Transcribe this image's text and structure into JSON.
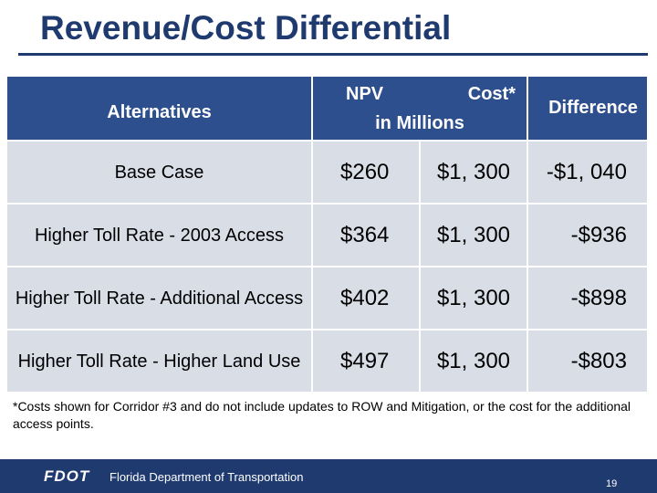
{
  "slide": {
    "title": "Revenue/Cost Differential"
  },
  "table": {
    "headers": {
      "alternatives": "Alternatives",
      "npv": "NPV",
      "cost": "Cost*",
      "units": "in Millions",
      "difference": "Difference"
    },
    "rows": [
      {
        "alternative": "Base Case",
        "npv": "$260",
        "cost": "$1, 300",
        "difference": "-$1, 040"
      },
      {
        "alternative": "Higher Toll Rate - 2003 Access",
        "npv": "$364",
        "cost": "$1, 300",
        "difference": "-$936"
      },
      {
        "alternative": "Higher Toll Rate - Additional Access",
        "npv": "$402",
        "cost": "$1, 300",
        "difference": "-$898"
      },
      {
        "alternative": "Higher Toll Rate - Higher Land Use",
        "npv": "$497",
        "cost": "$1, 300",
        "difference": "-$803"
      }
    ]
  },
  "footnote": "*Costs shown for Corridor #3 and do not include updates to ROW and Mitigation, or the cost for the additional access points.",
  "footer": {
    "logo_text": "FDOT",
    "organization": "Florida Department of Transportation",
    "page_number": "19"
  },
  "colors": {
    "title": "#1f3a6e",
    "header_bg": "#2d4f8e",
    "row_bg": "#d9dde6",
    "footer_bg": "#1f3a6e"
  }
}
